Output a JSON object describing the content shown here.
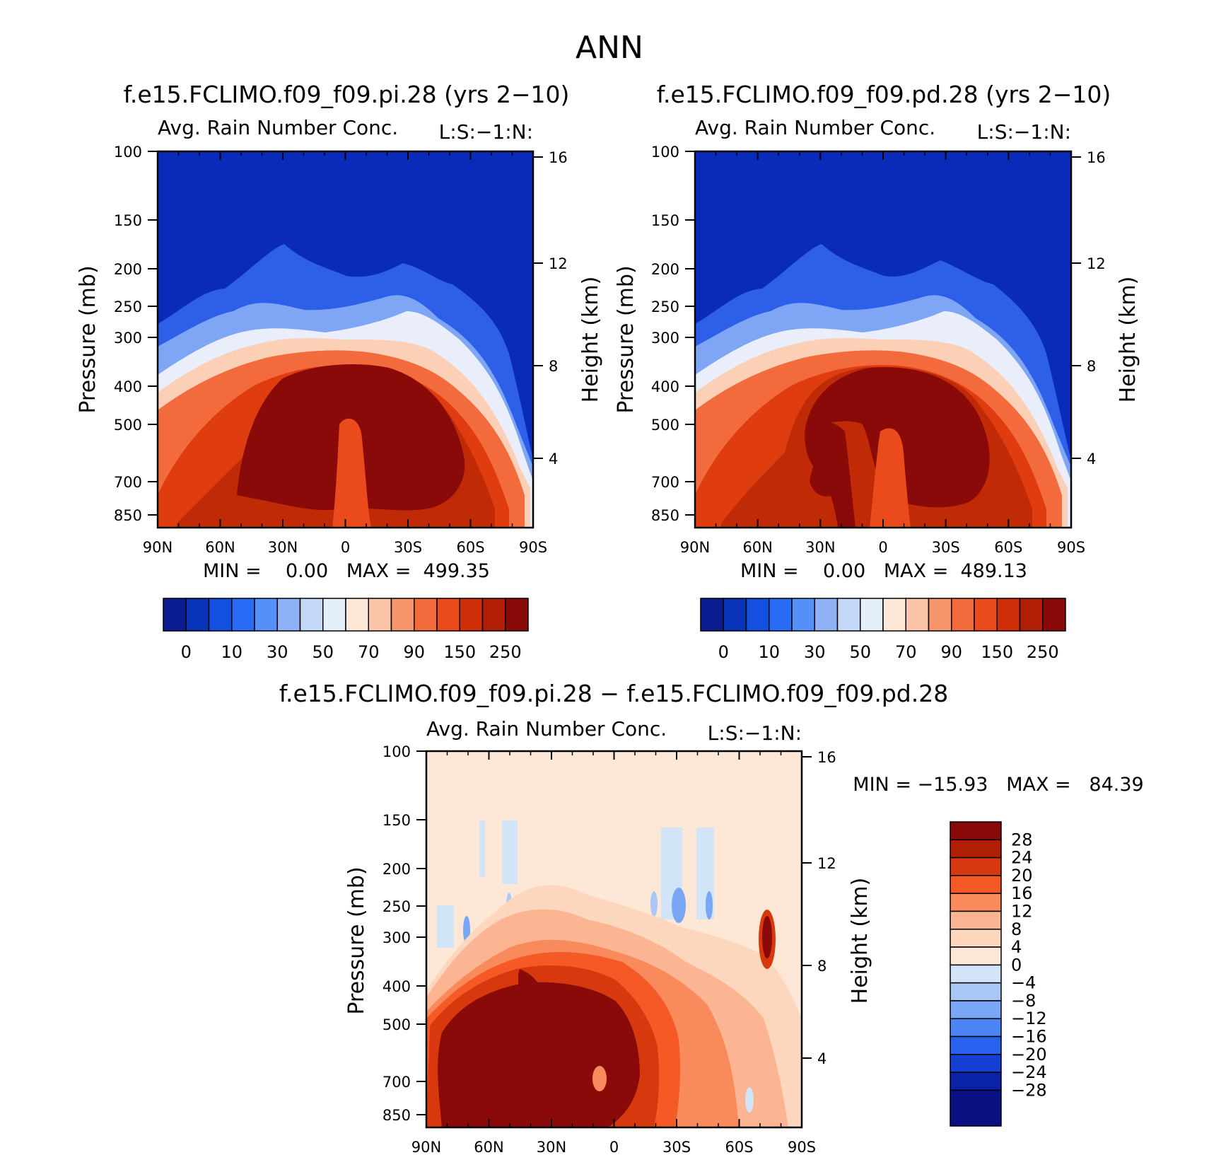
{
  "page_title": "ANN",
  "panels": [
    {
      "title": "f.e15.FCLIMO.f09_f09.pi.28 (yrs 2−10)",
      "subtitle": "Avg. Rain Number Conc.",
      "corner": "L:S:−1:N:",
      "ylabel": "Pressure (mb)",
      "ylabel2": "Height (km)",
      "stats": "MIN =    0.00   MAX =  499.35"
    },
    {
      "title": "f.e15.FCLIMO.f09_f09.pd.28 (yrs 2−10)",
      "subtitle": "Avg. Rain Number Conc.",
      "corner": "L:S:−1:N:",
      "ylabel": "Pressure (mb)",
      "ylabel2": "Height (km)",
      "stats": "MIN =    0.00   MAX =  489.13"
    },
    {
      "title": "f.e15.FCLIMO.f09_f09.pi.28 − f.e15.FCLIMO.f09_f09.pd.28",
      "subtitle": "Avg. Rain Number Conc.",
      "corner": "L:S:−1:N:",
      "ylabel": "Pressure (mb)",
      "ylabel2": "Height (km)",
      "stats": "MIN = −15.93   MAX =   84.39"
    }
  ],
  "chart_data": [
    {
      "type": "heatmap",
      "title": "f.e15.FCLIMO.f09_f09.pi.28 (yrs 2−10)",
      "subtitle": "Avg. Rain Number Conc.",
      "xlabel": "",
      "ylabel": "Pressure (mb)",
      "ylabel_right": "Height (km)",
      "x_ticks": [
        "90N",
        "60N",
        "30N",
        "0",
        "30S",
        "60S",
        "90S"
      ],
      "y_ticks": [
        "100",
        "150",
        "200",
        "250",
        "300",
        "400",
        "500",
        "700",
        "850"
      ],
      "y2_ticks": [
        "16",
        "12",
        "8",
        "4"
      ],
      "ylim": [
        100,
        850
      ],
      "y_scale": "log-pressure",
      "min": 0.0,
      "max": 499.35,
      "colorbar_labels": [
        "0",
        "10",
        "30",
        "50",
        "70",
        "90",
        "150",
        "250"
      ],
      "colorbar_colors": [
        "#0a1b8f",
        "#0832b8",
        "#1450e0",
        "#2a6cf5",
        "#5590f8",
        "#8fb2f6",
        "#c4d9f8",
        "#e4eefb",
        "#fde8d8",
        "#fac4a8",
        "#f7956c",
        "#f36a3c",
        "#ea4a1c",
        "#cf2e08",
        "#b01e05",
        "#8a0a0a"
      ],
      "features": {
        "core_max_region": "30N–60S, 350–850 mb",
        "top_of_rain_layer": "approx 300 mb near equator descending to 700 mb near 90S"
      }
    },
    {
      "type": "heatmap",
      "title": "f.e15.FCLIMO.f09_f09.pd.28 (yrs 2−10)",
      "subtitle": "Avg. Rain Number Conc.",
      "xlabel": "",
      "ylabel": "Pressure (mb)",
      "ylabel_right": "Height (km)",
      "x_ticks": [
        "90N",
        "60N",
        "30N",
        "0",
        "30S",
        "60S",
        "90S"
      ],
      "y_ticks": [
        "100",
        "150",
        "200",
        "250",
        "300",
        "400",
        "500",
        "700",
        "850"
      ],
      "y2_ticks": [
        "16",
        "12",
        "8",
        "4"
      ],
      "ylim": [
        100,
        850
      ],
      "y_scale": "log-pressure",
      "min": 0.0,
      "max": 489.13,
      "colorbar_labels": [
        "0",
        "10",
        "30",
        "50",
        "70",
        "90",
        "150",
        "250"
      ],
      "colorbar_colors": [
        "#0a1b8f",
        "#0832b8",
        "#1450e0",
        "#2a6cf5",
        "#5590f8",
        "#8fb2f6",
        "#c4d9f8",
        "#e4eefb",
        "#fde8d8",
        "#fac4a8",
        "#f7956c",
        "#f36a3c",
        "#ea4a1c",
        "#cf2e08",
        "#b01e05",
        "#8a0a0a"
      ]
    },
    {
      "type": "heatmap",
      "title": "f.e15.FCLIMO.f09_f09.pi.28 − f.e15.FCLIMO.f09_f09.pd.28",
      "subtitle": "Avg. Rain Number Conc.",
      "xlabel": "",
      "ylabel": "Pressure (mb)",
      "ylabel_right": "Height (km)",
      "x_ticks": [
        "90N",
        "60N",
        "30N",
        "0",
        "30S",
        "60S",
        "90S"
      ],
      "y_ticks": [
        "100",
        "150",
        "200",
        "250",
        "300",
        "400",
        "500",
        "700",
        "850"
      ],
      "y2_ticks": [
        "16",
        "12",
        "8",
        "4"
      ],
      "ylim": [
        100,
        850
      ],
      "y_scale": "log-pressure",
      "min": -15.93,
      "max": 84.39,
      "colorbar_labels": [
        "28",
        "24",
        "20",
        "16",
        "12",
        "8",
        "4",
        "0",
        "−4",
        "−8",
        "−12",
        "−16",
        "−20",
        "−24",
        "−28"
      ],
      "colorbar_colors": [
        "#8a0a0a",
        "#b01e05",
        "#d8380e",
        "#f55a26",
        "#f98a5c",
        "#fbb592",
        "#fcd6bd",
        "#fde8d8",
        "#d2e4f8",
        "#a9c8f6",
        "#7aa6f6",
        "#4b84f4",
        "#2a62f0",
        "#1440d4",
        "#0a22a8",
        "#0a1182"
      ]
    }
  ]
}
